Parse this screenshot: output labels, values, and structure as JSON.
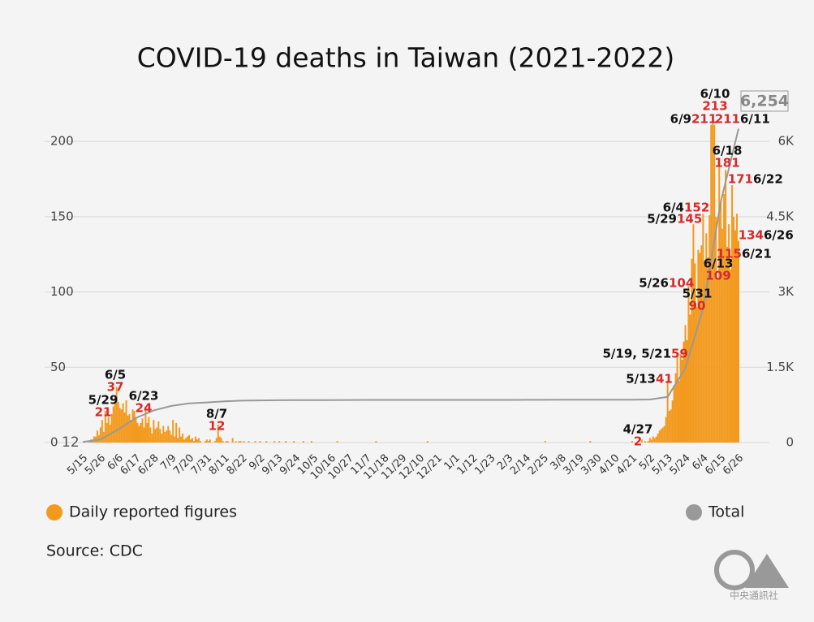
{
  "chart_data": {
    "type": "bar",
    "title": "COVID-19 deaths in Taiwan (2021-2022)",
    "source": "Source: CDC",
    "categories": [
      "5/15",
      null,
      null,
      null,
      null,
      null,
      null,
      null,
      null,
      null,
      null,
      "5/26",
      null,
      null,
      null,
      null,
      null,
      null,
      null,
      null,
      null,
      null,
      "6/6",
      null,
      null,
      null,
      null,
      null,
      null,
      null,
      null,
      null,
      null,
      "6/17",
      null,
      null,
      null,
      null,
      null,
      null,
      null,
      null,
      null,
      null,
      "6/28",
      null,
      null,
      null,
      null,
      null,
      null,
      null,
      null,
      null,
      null,
      "7/9",
      null,
      null,
      null,
      null,
      null,
      null,
      null,
      null,
      null,
      null,
      "7/20",
      null,
      null,
      null,
      null,
      null,
      null,
      null,
      null,
      null,
      null,
      "7/31",
      null,
      null,
      null,
      null,
      null,
      null,
      null,
      null,
      null,
      null,
      "8/11",
      null,
      null,
      null,
      null,
      null,
      null,
      null,
      null,
      null,
      null,
      "8/22",
      null,
      null,
      null,
      null,
      null,
      null,
      null,
      null,
      null,
      null,
      "9/2",
      null,
      null,
      null,
      null,
      null,
      null,
      null,
      null,
      null,
      null,
      "9/13",
      null,
      null,
      null,
      null,
      null,
      null,
      null,
      null,
      null,
      null,
      "9/24",
      null,
      null,
      null,
      null,
      null,
      null,
      null,
      null,
      null,
      null,
      "10/5",
      null,
      null,
      null,
      null,
      null,
      null,
      null,
      null,
      null,
      null,
      "10/16",
      null,
      null,
      null,
      null,
      null,
      null,
      null,
      null,
      null,
      null,
      "10/27",
      null,
      null,
      null,
      null,
      null,
      null,
      null,
      null,
      null,
      null,
      "11/7",
      null,
      null,
      null,
      null,
      null,
      null,
      null,
      null,
      null,
      null,
      "11/18",
      null,
      null,
      null,
      null,
      null,
      null,
      null,
      null,
      null,
      null,
      "11/29",
      null,
      null,
      null,
      null,
      null,
      null,
      null,
      null,
      null,
      null,
      "12/10",
      null,
      null,
      null,
      null,
      null,
      null,
      null,
      null,
      null,
      null,
      "12/21",
      null,
      null,
      null,
      null,
      null,
      null,
      null,
      null,
      null,
      null,
      "1/1",
      null,
      null,
      null,
      null,
      null,
      null,
      null,
      null,
      null,
      null,
      "1/12",
      null,
      null,
      null,
      null,
      null,
      null,
      null,
      null,
      null,
      null,
      "1/23",
      null,
      null,
      null,
      null,
      null,
      null,
      null,
      null,
      null,
      null,
      "2/3",
      null,
      null,
      null,
      null,
      null,
      null,
      null,
      null,
      null,
      null,
      "2/14",
      null,
      null,
      null,
      null,
      null,
      null,
      null,
      null,
      null,
      null,
      "2/25",
      null,
      null,
      null,
      null,
      null,
      null,
      null,
      null,
      null,
      null,
      "3/8",
      null,
      null,
      null,
      null,
      null,
      null,
      null,
      null,
      null,
      null,
      "3/19",
      null,
      null,
      null,
      null,
      null,
      null,
      null,
      null,
      null,
      null,
      "3/30",
      null,
      null,
      null,
      null,
      null,
      null,
      null,
      null,
      null,
      null,
      "4/10",
      null,
      null,
      null,
      null,
      null,
      null,
      null,
      null,
      null,
      null,
      "4/21",
      null,
      null,
      null,
      null,
      null,
      null,
      null,
      null,
      null,
      null,
      "5/2",
      null,
      null,
      null,
      null,
      null,
      null,
      null,
      null,
      null,
      null,
      "5/13",
      null,
      null,
      null,
      null,
      null,
      null,
      null,
      null,
      null,
      null,
      "5/24",
      null,
      null,
      null,
      null,
      null,
      null,
      null,
      null,
      null,
      null,
      "6/4",
      null,
      null,
      null,
      null,
      null,
      null,
      null,
      null,
      null,
      null,
      "6/15",
      null,
      null,
      null,
      null,
      null,
      null,
      null,
      null,
      null,
      null,
      "6/26"
    ],
    "series": [
      {
        "name": "Daily reported figures",
        "color": "#f39a1e",
        "values": [
          0,
          1,
          0,
          0,
          1,
          2,
          2,
          4,
          4,
          8,
          5,
          10,
          15,
          7,
          21,
          13,
          17,
          12,
          19,
          24,
          26,
          37,
          27,
          23,
          22,
          26,
          20,
          28,
          18,
          19,
          15,
          22,
          21,
          17,
          13,
          11,
          13,
          16,
          10,
          24,
          13,
          17,
          10,
          6,
          15,
          9,
          10,
          14,
          9,
          6,
          11,
          7,
          8,
          11,
          8,
          5,
          15,
          4,
          13,
          3,
          10,
          4,
          6,
          2,
          3,
          4,
          5,
          2,
          3,
          1,
          4,
          2,
          3,
          1,
          0,
          0,
          1,
          2,
          1,
          2,
          0,
          0,
          1,
          3,
          12,
          4,
          3,
          1,
          0,
          1,
          1,
          0,
          0,
          3,
          0,
          1,
          0,
          1,
          1,
          0,
          1,
          0,
          0,
          1,
          0,
          0,
          0,
          1,
          0,
          0,
          1,
          0,
          0,
          0,
          1,
          0,
          0,
          0,
          0,
          1,
          0,
          0,
          1,
          0,
          0,
          0,
          1,
          0,
          0,
          0,
          0,
          1,
          0,
          0,
          0,
          0,
          0,
          1,
          0,
          0,
          0,
          0,
          1,
          0,
          0,
          0,
          0,
          0,
          0,
          0,
          0,
          0,
          0,
          0,
          0,
          0,
          0,
          0,
          1,
          0,
          0,
          0,
          0,
          0,
          0,
          0,
          0,
          0,
          0,
          0,
          0,
          0,
          0,
          0,
          0,
          0,
          0,
          0,
          0,
          0,
          0,
          0,
          1,
          0,
          0,
          0,
          0,
          0,
          0,
          0,
          0,
          0,
          0,
          0,
          0,
          0,
          0,
          0,
          0,
          0,
          0,
          0,
          0,
          0,
          0,
          0,
          0,
          0,
          0,
          0,
          0,
          0,
          0,
          0,
          1,
          0,
          0,
          0,
          0,
          0,
          0,
          0,
          0,
          0,
          0,
          0,
          0,
          0,
          0,
          0,
          0,
          0,
          0,
          0,
          0,
          0,
          0,
          0,
          0,
          0,
          0,
          0,
          0,
          0,
          0,
          0,
          0,
          0,
          0,
          0,
          0,
          0,
          0,
          0,
          0,
          0,
          0,
          0,
          0,
          0,
          0,
          0,
          0,
          0,
          0,
          0,
          0,
          0,
          0,
          0,
          0,
          0,
          0,
          0,
          0,
          0,
          0,
          0,
          0,
          0,
          0,
          0,
          0,
          0,
          0,
          0,
          0,
          1,
          0,
          0,
          0,
          0,
          0,
          0,
          0,
          0,
          0,
          0,
          0,
          0,
          0,
          0,
          0,
          0,
          0,
          0,
          0,
          0,
          0,
          0,
          0,
          0,
          0,
          0,
          0,
          1,
          0,
          0,
          0,
          0,
          0,
          0,
          0,
          0,
          0,
          0,
          0,
          0,
          0,
          0,
          0,
          0,
          0,
          0,
          0,
          0,
          0,
          0,
          0,
          0,
          0,
          1,
          0,
          0,
          0,
          0,
          0,
          2,
          0,
          1,
          0,
          1,
          3,
          2,
          4,
          3,
          4,
          6,
          8,
          9,
          10,
          11,
          17,
          41,
          21,
          22,
          28,
          38,
          46,
          59,
          41,
          59,
          55,
          67,
          78,
          68,
          104,
          85,
          122,
          145,
          119,
          90,
          128,
          126,
          131,
          152,
          118,
          139,
          123,
          151,
          211,
          213,
          211,
          150,
          109,
          188,
          160,
          142,
          165,
          181,
          130,
          145,
          115,
          171,
          150,
          141,
          152,
          134
        ]
      },
      {
        "name": "Total",
        "color": "#999999",
        "type": "line",
        "axis": "y2",
        "x": [
          "5/15",
          "5/26",
          "6/6",
          "6/17",
          "6/28",
          "7/9",
          "7/20",
          "7/31",
          "8/11",
          "8/22",
          "9/2",
          "9/13",
          "9/24",
          "10/5",
          "10/16",
          "10/27",
          "11/7",
          "11/18",
          "11/29",
          "12/10",
          "12/21",
          "1/1",
          "1/12",
          "1/23",
          "2/3",
          "2/14",
          "2/25",
          "3/8",
          "3/19",
          "3/30",
          "4/10",
          "4/21",
          "5/2",
          "5/13",
          "5/24",
          "6/4",
          "6/15",
          "6/26"
        ],
        "values": [
          12,
          60,
          260,
          490,
          640,
          730,
          780,
          800,
          820,
          835,
          840,
          843,
          845,
          846,
          847,
          848,
          849,
          849,
          850,
          850,
          850,
          850,
          850,
          850,
          850,
          851,
          851,
          852,
          852,
          852,
          853,
          853,
          858,
          910,
          1480,
          2670,
          4800,
          6254
        ],
        "value_labels": [
          "12",
          null,
          null,
          null,
          null,
          null,
          null,
          null,
          null,
          null,
          null,
          null,
          null,
          null,
          null,
          null,
          null,
          null,
          null,
          null,
          null,
          null,
          null,
          null,
          null,
          null,
          null,
          null,
          null,
          null,
          null,
          null,
          null,
          null,
          null,
          null,
          null,
          "6,254"
        ]
      }
    ],
    "annotations": [
      {
        "label": "5/29",
        "value": 21
      },
      {
        "label": "6/5",
        "value": 37
      },
      {
        "label": "6/23",
        "value": 24
      },
      {
        "label": "8/7",
        "value": 12
      },
      {
        "label": "4/27",
        "value": 2
      },
      {
        "label": "5/13",
        "value": 41
      },
      {
        "label": "5/19, 5/21",
        "value": 59
      },
      {
        "label": "5/26",
        "value": 104
      },
      {
        "label": "5/29",
        "value": 145
      },
      {
        "label": "5/31",
        "value": 90
      },
      {
        "label": "6/4",
        "value": 152
      },
      {
        "label": "6/9",
        "value": 211
      },
      {
        "label": "6/10",
        "value": 213
      },
      {
        "label": "6/11",
        "value": 211
      },
      {
        "label": "6/13",
        "value": 109
      },
      {
        "label": "6/18",
        "value": 181
      },
      {
        "label": "6/21",
        "value": 115
      },
      {
        "label": "6/22",
        "value": 171
      },
      {
        "label": "6/26",
        "value": 134
      }
    ],
    "ylim": [
      0,
      240
    ],
    "yticks": [
      0,
      50,
      100,
      150,
      200
    ],
    "y2lim": [
      0,
      7200
    ],
    "y2ticks": [
      0,
      {
        "value": 1500,
        "label": "1.5K"
      },
      {
        "value": 3000,
        "label": "3K"
      },
      {
        "value": 4500,
        "label": "4.5K"
      },
      {
        "value": 6000,
        "label": "6K"
      }
    ],
    "grid": true
  },
  "logo_text": "中央通訊社"
}
